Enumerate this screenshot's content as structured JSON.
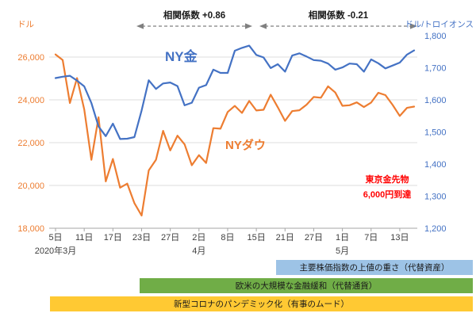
{
  "chart_data": {
    "type": "line",
    "title": "",
    "annotations": {
      "correlation_1": "相関係数 +0.86",
      "correlation_2": "相関係数 -0.21",
      "gold_label": "NY金",
      "dow_label": "NYダウ",
      "red_note_line1": "東京金先物",
      "red_note_line2": "6,000円到達",
      "red_note_color": "#FF0000"
    },
    "left_axis": {
      "unit": "ドル",
      "color": "#ED7D31",
      "min": 18000,
      "max": 27000,
      "ticks": [
        {
          "value": 26000,
          "label": "26,000"
        },
        {
          "value": 24000,
          "label": "24,000"
        },
        {
          "value": 22000,
          "label": "22,000"
        },
        {
          "value": 20000,
          "label": "20,000"
        },
        {
          "value": 18000,
          "label": "18,000"
        }
      ]
    },
    "right_axis": {
      "unit": "ドル/トロイオンス",
      "color": "#4472C4",
      "min": 1200,
      "max": 1800,
      "ticks": [
        {
          "value": 1800,
          "label": "1,800"
        },
        {
          "value": 1700,
          "label": "1,700"
        },
        {
          "value": 1600,
          "label": "1,600"
        },
        {
          "value": 1500,
          "label": "1,500"
        },
        {
          "value": 1400,
          "label": "1,400"
        },
        {
          "value": 1300,
          "label": "1,300"
        },
        {
          "value": 1200,
          "label": "1,200"
        }
      ]
    },
    "x_axis": {
      "ticks": [
        {
          "i": 0,
          "label": "5日"
        },
        {
          "i": 4,
          "label": "11日"
        },
        {
          "i": 8,
          "label": "17日"
        },
        {
          "i": 12,
          "label": "23日"
        },
        {
          "i": 16,
          "label": "27日"
        },
        {
          "i": 20,
          "label": "2日"
        },
        {
          "i": 24,
          "label": "8日"
        },
        {
          "i": 28,
          "label": "15日"
        },
        {
          "i": 32,
          "label": "21日"
        },
        {
          "i": 36,
          "label": "27日"
        },
        {
          "i": 40,
          "label": "1日"
        },
        {
          "i": 44,
          "label": "7日"
        },
        {
          "i": 48,
          "label": "13日"
        }
      ],
      "month_labels": [
        {
          "i": 0,
          "label": "2020年3月"
        },
        {
          "i": 20,
          "label": "4月"
        },
        {
          "i": 40,
          "label": "5月"
        }
      ]
    },
    "series": [
      {
        "name": "NYダウ",
        "axis": "left",
        "color": "#ED7D31",
        "values": [
          26121,
          25864,
          23851,
          25018,
          23553,
          21200,
          23185,
          20188,
          21237,
          19898,
          20087,
          19173,
          18592,
          20704,
          21200,
          22552,
          21636,
          22327,
          21917,
          20943,
          21413,
          21052,
          22679,
          22653,
          23433,
          23719,
          23390,
          23949,
          23504,
          23537,
          24242,
          23650,
          23018,
          23475,
          23515,
          23775,
          24133,
          24101,
          24633,
          24345,
          23723,
          23749,
          23883,
          23664,
          23875,
          24331,
          24221,
          23764,
          23247,
          23625,
          23685
        ]
      },
      {
        "name": "NY金",
        "axis": "right",
        "color": "#4472C4",
        "values": [
          1668,
          1672,
          1675,
          1660,
          1642,
          1590,
          1517,
          1487,
          1526,
          1478,
          1479,
          1484,
          1567,
          1661,
          1634,
          1651,
          1654,
          1643,
          1583,
          1591,
          1638,
          1646,
          1694,
          1684,
          1684,
          1753,
          1762,
          1769,
          1740,
          1732,
          1699,
          1711,
          1688,
          1738,
          1745,
          1735,
          1724,
          1722,
          1713,
          1694,
          1701,
          1713,
          1711,
          1688,
          1726,
          1714,
          1698,
          1707,
          1716,
          1741,
          1754
        ]
      }
    ],
    "legend_position": "in-plot-labels",
    "grid": true
  },
  "timeline_bars": [
    {
      "label": "主要株価指数の上値の重さ（代替資産）",
      "color": "#9DC3E6"
    },
    {
      "label": "欧米の大規模な金融緩和（代替通貨）",
      "color": "#70AD47"
    },
    {
      "label": "新型コロナのパンデミック化（有事のムード）",
      "color": "#FFC933"
    }
  ]
}
